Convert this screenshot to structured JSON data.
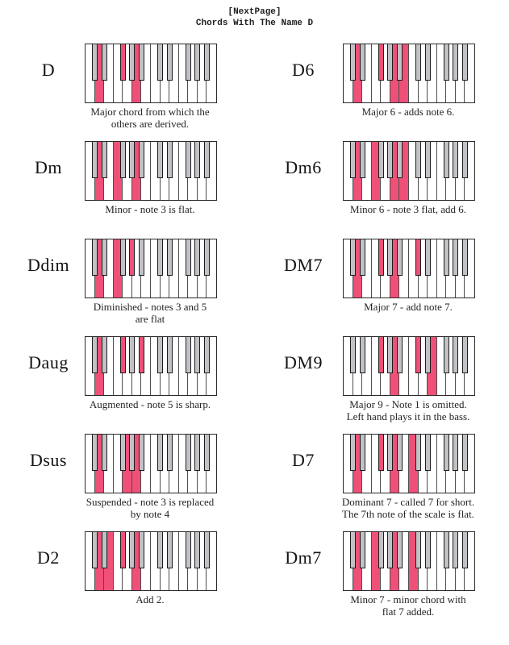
{
  "header": {
    "nav": "[NextPage]",
    "title": "Chords With The Name D"
  },
  "colors": {
    "highlight_pink": "#ef5078",
    "black_key_gray": "#c2c1c6",
    "keyboard_outline": "#2a2a2a",
    "text": "#1e1e1e",
    "background": "#ffffff"
  },
  "keyboard": {
    "white_keys": [
      "C1",
      "D1",
      "E1",
      "F1",
      "G1",
      "A1",
      "B1",
      "C2",
      "D2",
      "E2",
      "F2",
      "G2",
      "A2",
      "B2"
    ],
    "black_keys": [
      "C#1",
      "D#1",
      "F#1",
      "G#1",
      "A#1",
      "C#2",
      "D#2",
      "F#2",
      "G#2",
      "A#2"
    ],
    "black_after_white_index": [
      0,
      1,
      3,
      4,
      5,
      7,
      8,
      10,
      11,
      12
    ]
  },
  "chords": [
    {
      "name": "D",
      "highlights": [
        "D1",
        "F#1",
        "A1"
      ],
      "caption": [
        "Major chord from which the",
        "others are derived."
      ]
    },
    {
      "name": "D6",
      "highlights": [
        "D1",
        "F#1",
        "A1",
        "B1"
      ],
      "caption": [
        "Major 6 - adds note 6."
      ]
    },
    {
      "name": "Dm",
      "highlights": [
        "D1",
        "F1",
        "A1"
      ],
      "caption": [
        "Minor - note 3 is flat."
      ]
    },
    {
      "name": "Dm6",
      "highlights": [
        "D1",
        "F1",
        "A1",
        "B1"
      ],
      "caption": [
        "Minor 6 - note 3 flat, add 6."
      ]
    },
    {
      "name": "Ddim",
      "highlights": [
        "D1",
        "F1",
        "G#1"
      ],
      "caption": [
        "Diminished - notes 3 and 5",
        "are flat"
      ]
    },
    {
      "name": "DM7",
      "highlights": [
        "D1",
        "F#1",
        "A1",
        "C#2"
      ],
      "caption": [
        "Major 7 - add note 7."
      ]
    },
    {
      "name": "Daug",
      "highlights": [
        "D1",
        "F#1",
        "A#1"
      ],
      "caption": [
        "Augmented - note 5 is sharp."
      ]
    },
    {
      "name": "DM9",
      "highlights": [
        "F#1",
        "A1",
        "C#2",
        "E2"
      ],
      "caption": [
        "Major 9 - Note 1 is omitted.",
        "Left hand plays it in the bass."
      ]
    },
    {
      "name": "Dsus",
      "highlights": [
        "D1",
        "G1",
        "A1"
      ],
      "caption": [
        "Suspended - note 3 is replaced",
        "by note 4"
      ]
    },
    {
      "name": "D7",
      "highlights": [
        "D1",
        "F#1",
        "A1",
        "C2"
      ],
      "caption": [
        "Dominant 7 - called 7 for short.",
        "The 7th note of the scale is flat."
      ]
    },
    {
      "name": "D2",
      "highlights": [
        "D1",
        "E1",
        "F#1",
        "A1"
      ],
      "caption": [
        "Add 2."
      ]
    },
    {
      "name": "Dm7",
      "highlights": [
        "D1",
        "F1",
        "A1",
        "C2"
      ],
      "caption": [
        "Minor 7 - minor chord with",
        "flat 7 added."
      ]
    }
  ]
}
